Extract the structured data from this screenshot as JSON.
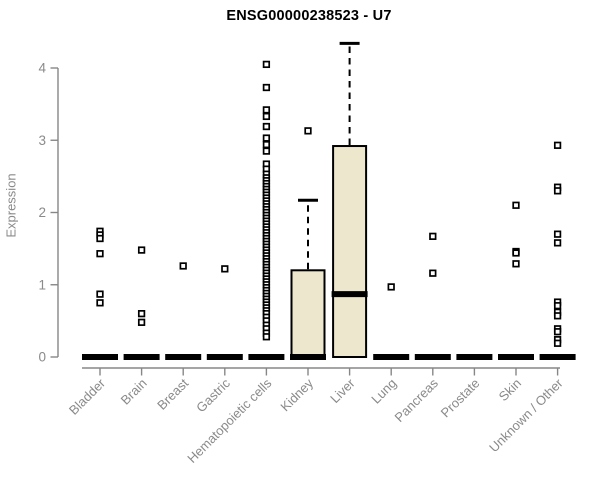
{
  "colors": {
    "background": "#ffffff",
    "title": "#000000",
    "axis": "#878787",
    "tick_label": "#8a8a8a",
    "box_fill": "#ede8cd",
    "box_border": "#000000",
    "median": "#000000",
    "outlier_fill": "#ffffff",
    "outlier_border": "#000000"
  },
  "chart_data": {
    "type": "boxplot",
    "title": "ENSG00000238523 - U7",
    "xlabel": "",
    "ylabel": "Expression",
    "ylim": [
      0,
      4.4
    ],
    "yticks": [
      0,
      1,
      2,
      3,
      4
    ],
    "grid": false,
    "legend": "none",
    "categories": [
      "Bladder",
      "Brain",
      "Breast",
      "Gastric",
      "Hematopoietic cells",
      "Kidney",
      "Liver",
      "Lung",
      "Pancreas",
      "Prostate",
      "Skin",
      "Unknown / Other"
    ],
    "series": [
      {
        "category": "Bladder",
        "q1": 0,
        "median": 0,
        "q3": 0,
        "whisker_high": null,
        "outliers": [
          1.74,
          1.69,
          1.64,
          1.43,
          0.87,
          0.75
        ]
      },
      {
        "category": "Brain",
        "q1": 0,
        "median": 0,
        "q3": 0,
        "whisker_high": null,
        "outliers": [
          1.48,
          0.6,
          0.48
        ]
      },
      {
        "category": "Breast",
        "q1": 0,
        "median": 0,
        "q3": 0,
        "whisker_high": null,
        "outliers": [
          1.26
        ]
      },
      {
        "category": "Gastric",
        "q1": 0,
        "median": 0,
        "q3": 0,
        "whisker_high": null,
        "outliers": [
          1.22
        ]
      },
      {
        "category": "Hematopoietic cells",
        "q1": 0,
        "median": 0,
        "q3": 0,
        "whisker_high": null,
        "outliers": [
          4.05,
          3.73,
          3.42,
          3.33,
          3.19,
          3.03,
          2.94,
          2.85,
          2.67,
          2.6,
          2.53,
          2.48,
          2.44,
          2.4,
          2.36,
          2.32,
          2.28,
          2.24,
          2.2,
          2.16,
          2.12,
          2.08,
          2.04,
          2.0,
          1.96,
          1.92,
          1.88,
          1.84,
          1.8,
          1.76,
          1.72,
          1.68,
          1.64,
          1.6,
          1.56,
          1.52,
          1.48,
          1.44,
          1.4,
          1.36,
          1.32,
          1.28,
          1.24,
          1.2,
          1.16,
          1.12,
          1.08,
          1.04,
          1.0,
          0.96,
          0.92,
          0.88,
          0.84,
          0.8,
          0.76,
          0.72,
          0.68,
          0.64,
          0.6,
          0.55,
          0.5,
          0.44,
          0.39,
          0.33,
          0.28
        ]
      },
      {
        "category": "Kidney",
        "q1": 0,
        "median": 0,
        "q3": 1.2,
        "whisker_high": 2.17,
        "outliers": [
          3.13
        ]
      },
      {
        "category": "Liver",
        "q1": 0,
        "median": 0.87,
        "q3": 2.92,
        "whisker_high": 4.34,
        "outliers": []
      },
      {
        "category": "Lung",
        "q1": 0,
        "median": 0,
        "q3": 0,
        "whisker_high": null,
        "outliers": [
          0.97
        ]
      },
      {
        "category": "Pancreas",
        "q1": 0,
        "median": 0,
        "q3": 0,
        "whisker_high": null,
        "outliers": [
          1.67,
          1.16
        ]
      },
      {
        "category": "Prostate",
        "q1": 0,
        "median": 0,
        "q3": 0,
        "whisker_high": null,
        "outliers": []
      },
      {
        "category": "Skin",
        "q1": 0,
        "median": 0,
        "q3": 0,
        "whisker_high": null,
        "outliers": [
          2.1,
          1.46,
          1.44,
          1.29
        ]
      },
      {
        "category": "Unknown / Other",
        "q1": 0,
        "median": 0,
        "q3": 0,
        "whisker_high": null,
        "outliers": [
          2.93,
          2.35,
          2.3,
          1.7,
          1.58,
          0.76,
          0.71,
          0.62,
          0.57,
          0.39,
          0.35,
          0.24,
          0.19
        ]
      }
    ]
  }
}
